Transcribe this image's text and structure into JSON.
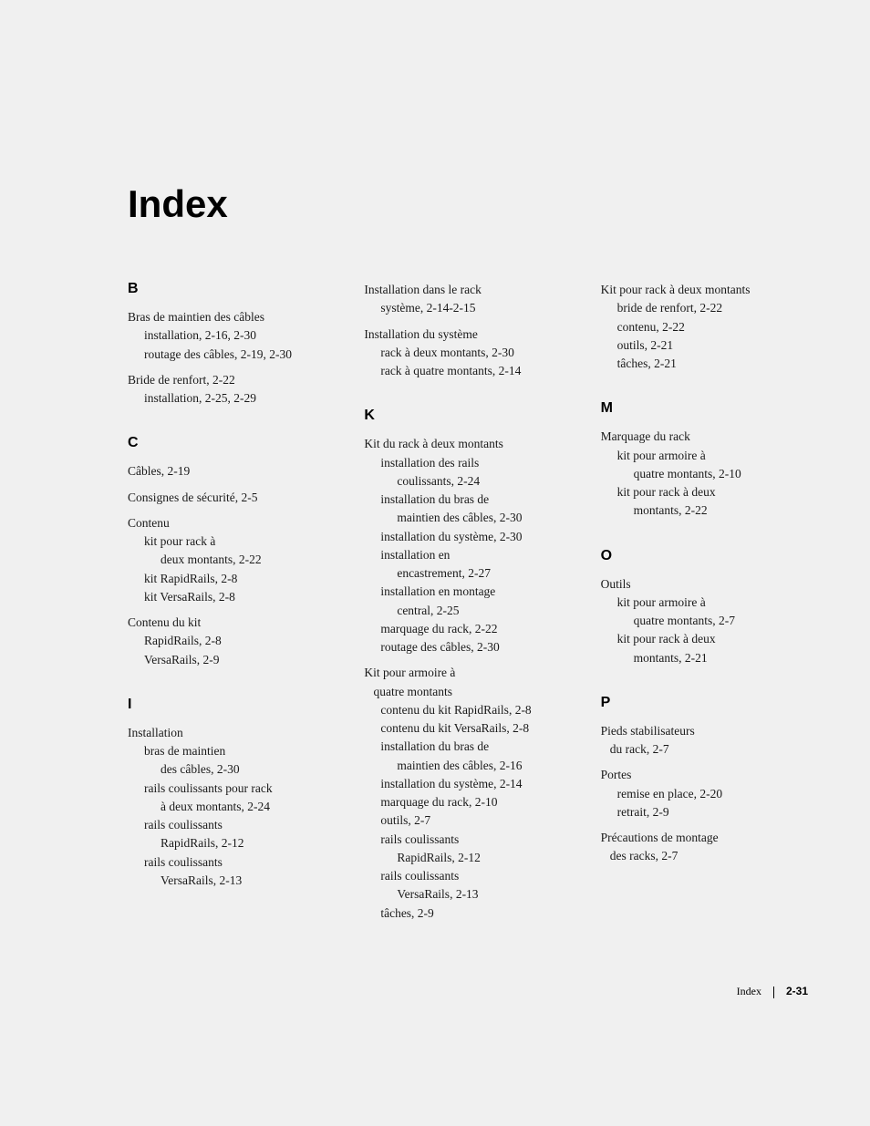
{
  "title": "Index",
  "footer": {
    "label": "Index",
    "page": "2-31"
  },
  "col1": {
    "sections": [
      {
        "letter": "B",
        "entries": [
          {
            "main": "Bras de maintien des câbles",
            "subs": [
              "installation, 2-16, 2-30",
              "routage des câbles, 2-19, 2-30"
            ]
          },
          {
            "main": "Bride de renfort, 2-22",
            "subs": [
              "installation, 2-25, 2-29"
            ]
          }
        ]
      },
      {
        "letter": "C",
        "entries": [
          {
            "main": "Câbles, 2-19",
            "subs": []
          },
          {
            "main": "Consignes de sécurité, 2-5",
            "subs": []
          },
          {
            "main": "Contenu",
            "subs": [
              "kit pour rack à",
              "   deux montants, 2-22",
              "kit RapidRails, 2-8",
              "kit VersaRails, 2-8"
            ]
          },
          {
            "main": "Contenu du kit",
            "subs": [
              "RapidRails, 2-8",
              "VersaRails, 2-9"
            ]
          }
        ]
      },
      {
        "letter": "I",
        "entries": [
          {
            "main": "Installation",
            "subs": [
              "bras de maintien",
              "   des câbles, 2-30",
              "rails coulissants pour rack",
              "   à deux montants, 2-24",
              "rails coulissants",
              "   RapidRails, 2-12",
              "rails coulissants",
              "   VersaRails, 2-13"
            ]
          }
        ]
      }
    ]
  },
  "col2": {
    "top_entries": [
      {
        "main": "Installation dans le rack",
        "subs": [
          "système, 2-14-2-15"
        ]
      },
      {
        "main": "Installation du système",
        "subs": [
          "rack à deux montants, 2-30",
          "rack à quatre montants, 2-14"
        ]
      }
    ],
    "sections": [
      {
        "letter": "K",
        "entries": [
          {
            "main": "Kit du rack à deux montants",
            "subs": [
              "installation des rails",
              "   coulissants, 2-24",
              "installation du bras de",
              "   maintien des câbles, 2-30",
              "installation du système, 2-30",
              "installation en",
              "   encastrement, 2-27",
              "installation en montage",
              "   central, 2-25",
              "marquage du rack, 2-22",
              "routage des câbles, 2-30"
            ]
          },
          {
            "main": "Kit pour armoire à",
            "cont": "   quatre montants",
            "subs": [
              "contenu du kit RapidRails, 2-8",
              "contenu du kit VersaRails, 2-8",
              "installation du bras de",
              "   maintien des câbles, 2-16",
              "installation du système, 2-14",
              "marquage du rack, 2-10",
              "outils, 2-7",
              "rails coulissants",
              "   RapidRails, 2-12",
              "rails coulissants",
              "   VersaRails, 2-13",
              "tâches, 2-9"
            ]
          }
        ]
      }
    ]
  },
  "col3": {
    "top_entries": [
      {
        "main": "Kit pour rack à deux montants",
        "subs": [
          "bride de renfort, 2-22",
          "contenu, 2-22",
          "outils, 2-21",
          "tâches, 2-21"
        ]
      }
    ],
    "sections": [
      {
        "letter": "M",
        "entries": [
          {
            "main": "Marquage du rack",
            "subs": [
              "kit pour armoire à",
              "   quatre montants, 2-10",
              "kit pour rack à deux",
              "   montants, 2-22"
            ]
          }
        ]
      },
      {
        "letter": "O",
        "entries": [
          {
            "main": "Outils",
            "subs": [
              "kit pour armoire à",
              "   quatre montants, 2-7",
              "kit pour rack à deux",
              "   montants, 2-21"
            ]
          }
        ]
      },
      {
        "letter": "P",
        "entries": [
          {
            "main": "Pieds stabilisateurs",
            "cont": "   du rack, 2-7",
            "subs": []
          },
          {
            "main": "Portes",
            "subs": [
              "remise en place, 2-20",
              "retrait, 2-9"
            ]
          },
          {
            "main": "Précautions de montage",
            "cont": "   des racks, 2-7",
            "subs": []
          }
        ]
      }
    ]
  }
}
